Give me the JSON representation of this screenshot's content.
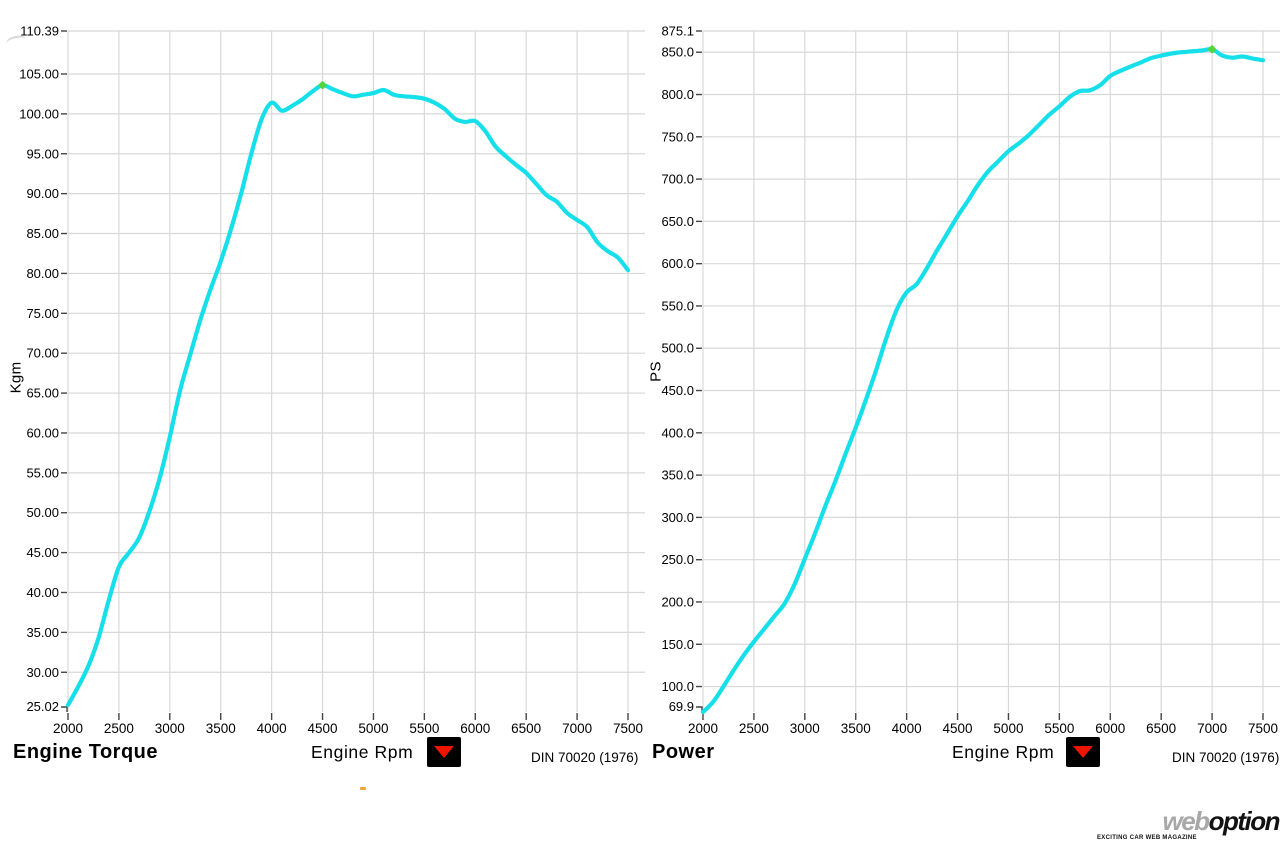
{
  "branding": {
    "logo_web": "web",
    "logo_option": "option",
    "logo_tagline": "EXCITING CAR WEB MAGAZINE"
  },
  "colors": {
    "curve": "#15dfe9",
    "grid": "#d8d8d8",
    "tick": "#444444",
    "axis_text": "#000000",
    "peak_marker": "#53d43c",
    "button_bg": "#000000",
    "button_arrow": "#ee1500",
    "artifact": "#f0a43c",
    "logo_web": "#a8a8a8",
    "logo_option": "#121212"
  },
  "chart_data": [
    {
      "type": "line",
      "title": "Engine Torque",
      "ylabel": "Kgm",
      "xlabel": "Engine Rpm",
      "note": "DIN 70020 (1976)",
      "grid": true,
      "legend": "none",
      "x_range": [
        2000,
        7500
      ],
      "y_range": [
        25.02,
        110.39
      ],
      "x_ticks": [
        {
          "v": 2000,
          "t": "2000"
        },
        {
          "v": 2500,
          "t": "2500"
        },
        {
          "v": 3000,
          "t": "3000"
        },
        {
          "v": 3500,
          "t": "3500"
        },
        {
          "v": 4000,
          "t": "4000"
        },
        {
          "v": 4500,
          "t": "4500"
        },
        {
          "v": 5000,
          "t": "5000"
        },
        {
          "v": 5500,
          "t": "5500"
        },
        {
          "v": 6000,
          "t": "6000"
        },
        {
          "v": 6500,
          "t": "6500"
        },
        {
          "v": 7000,
          "t": "7000"
        },
        {
          "v": 7500,
          "t": "7500"
        }
      ],
      "y_ticks": [
        {
          "v": 110.39,
          "t": "110.39",
          "top": true
        },
        {
          "v": 105,
          "t": "105.00"
        },
        {
          "v": 100,
          "t": "100.00"
        },
        {
          "v": 95,
          "t": "95.00"
        },
        {
          "v": 90,
          "t": "90.00"
        },
        {
          "v": 85,
          "t": "85.00"
        },
        {
          "v": 80,
          "t": "80.00"
        },
        {
          "v": 75,
          "t": "75.00"
        },
        {
          "v": 70,
          "t": "70.00"
        },
        {
          "v": 65,
          "t": "65.00"
        },
        {
          "v": 60,
          "t": "60.00"
        },
        {
          "v": 55,
          "t": "55.00"
        },
        {
          "v": 50,
          "t": "50.00"
        },
        {
          "v": 45,
          "t": "45.00"
        },
        {
          "v": 40,
          "t": "40.00"
        },
        {
          "v": 35,
          "t": "35.00"
        },
        {
          "v": 30,
          "t": "30.00"
        },
        {
          "v": 25.02,
          "t": "25.02",
          "bottom": true
        }
      ],
      "series": [
        {
          "name": "torque",
          "x": [
            2000,
            2100,
            2200,
            2300,
            2400,
            2500,
            2600,
            2700,
            2800,
            2900,
            3000,
            3100,
            3200,
            3300,
            3400,
            3500,
            3600,
            3700,
            3800,
            3900,
            4000,
            4100,
            4200,
            4300,
            4400,
            4500,
            4600,
            4700,
            4800,
            4900,
            5000,
            5100,
            5200,
            5300,
            5400,
            5500,
            5600,
            5700,
            5800,
            5900,
            6000,
            6100,
            6200,
            6300,
            6400,
            6500,
            6600,
            6700,
            6800,
            6900,
            7000,
            7100,
            7200,
            7300,
            7400,
            7500
          ],
          "y": [
            25.9,
            28.2,
            30.8,
            34.3,
            39.0,
            43.2,
            45.0,
            46.9,
            50.2,
            54.3,
            59.5,
            65.3,
            69.8,
            74.2,
            78.0,
            81.5,
            85.5,
            90.0,
            95.0,
            99.3,
            101.4,
            100.4,
            101.0,
            101.8,
            102.8,
            103.6,
            103.1,
            102.6,
            102.2,
            102.4,
            102.6,
            103.0,
            102.4,
            102.2,
            102.1,
            101.9,
            101.4,
            100.6,
            99.4,
            99.0,
            99.1,
            97.8,
            95.9,
            94.7,
            93.6,
            92.6,
            91.2,
            89.8,
            89.0,
            87.6,
            86.7,
            85.8,
            83.9,
            82.8,
            82.0,
            80.4
          ]
        }
      ],
      "peak_marker": {
        "x": 4500,
        "y": 103.6
      }
    },
    {
      "type": "line",
      "title": "Power",
      "ylabel": "PS",
      "xlabel": "Engine Rpm",
      "note": "DIN 70020 (1976)",
      "grid": true,
      "legend": "none",
      "x_range": [
        2000,
        7500
      ],
      "y_range": [
        69.9,
        875.1
      ],
      "x_ticks": [
        {
          "v": 2000,
          "t": "2000"
        },
        {
          "v": 2500,
          "t": "2500"
        },
        {
          "v": 3000,
          "t": "3000"
        },
        {
          "v": 3500,
          "t": "3500"
        },
        {
          "v": 4000,
          "t": "4000"
        },
        {
          "v": 4500,
          "t": "4500"
        },
        {
          "v": 5000,
          "t": "5000"
        },
        {
          "v": 5500,
          "t": "5500"
        },
        {
          "v": 6000,
          "t": "6000"
        },
        {
          "v": 6500,
          "t": "6500"
        },
        {
          "v": 7000,
          "t": "7000"
        },
        {
          "v": 7500,
          "t": "7500"
        }
      ],
      "y_ticks": [
        {
          "v": 875.1,
          "t": "875.1",
          "top": true
        },
        {
          "v": 850,
          "t": "850.0"
        },
        {
          "v": 800,
          "t": "800.0"
        },
        {
          "v": 750,
          "t": "750.0"
        },
        {
          "v": 700,
          "t": "700.0"
        },
        {
          "v": 650,
          "t": "650.0"
        },
        {
          "v": 600,
          "t": "600.0"
        },
        {
          "v": 550,
          "t": "550.0"
        },
        {
          "v": 500,
          "t": "500.0"
        },
        {
          "v": 450,
          "t": "450.0"
        },
        {
          "v": 400,
          "t": "400.0"
        },
        {
          "v": 350,
          "t": "350.0"
        },
        {
          "v": 300,
          "t": "300.0"
        },
        {
          "v": 250,
          "t": "250.0"
        },
        {
          "v": 200,
          "t": "200.0"
        },
        {
          "v": 150,
          "t": "150.0"
        },
        {
          "v": 100,
          "t": "100.0"
        },
        {
          "v": 69.9,
          "t": "69.9",
          "bottom": true
        }
      ],
      "series": [
        {
          "name": "power",
          "x": [
            2000,
            2100,
            2200,
            2300,
            2400,
            2500,
            2600,
            2700,
            2800,
            2900,
            3000,
            3100,
            3200,
            3300,
            3400,
            3500,
            3600,
            3700,
            3800,
            3900,
            4000,
            4100,
            4200,
            4300,
            4400,
            4500,
            4600,
            4700,
            4800,
            4900,
            5000,
            5100,
            5200,
            5300,
            5400,
            5500,
            5600,
            5700,
            5800,
            5900,
            6000,
            6100,
            6200,
            6300,
            6400,
            6500,
            6600,
            6700,
            6800,
            6900,
            7000,
            7100,
            7200,
            7300,
            7400,
            7500
          ],
          "y": [
            69.9,
            82,
            100,
            119,
            137,
            153,
            168,
            183,
            198,
            221,
            251,
            281,
            313,
            343,
            375,
            406,
            439,
            474,
            512,
            545,
            566,
            576,
            595,
            616,
            636,
            656,
            674,
            693,
            709,
            721,
            733,
            742,
            752,
            764,
            776,
            786,
            797,
            804,
            805,
            811,
            822,
            828,
            833,
            838,
            843,
            846,
            848.5,
            850,
            851,
            852,
            853.5,
            846,
            843.5,
            845,
            842.5,
            840.5
          ]
        }
      ],
      "peak_marker": {
        "x": 7000,
        "y": 853.5
      }
    }
  ]
}
